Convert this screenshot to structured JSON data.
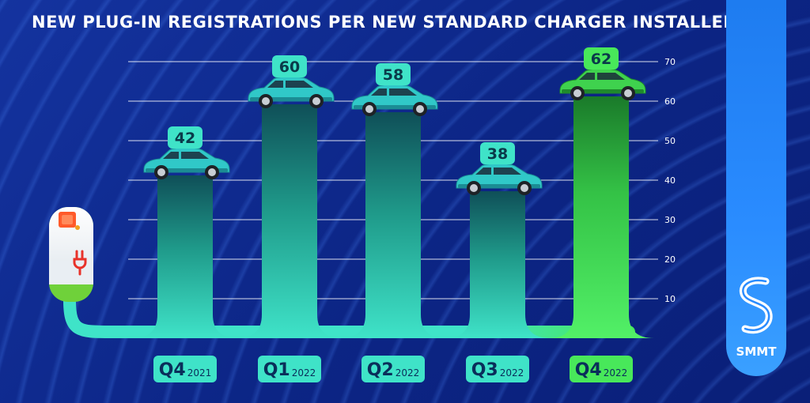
{
  "title": "NEW PLUG-IN REGISTRATIONS PER NEW STANDARD CHARGER INSTALLED",
  "brand": {
    "name": "SMMT"
  },
  "colors": {
    "background": "#0d2a8c",
    "teal": "#3fe3c8",
    "green": "#48e85a",
    "brand_blue": "#2a8cff"
  },
  "icons": [
    "charger-icon",
    "car-icon",
    "smmt-logo-icon"
  ],
  "chart_data": {
    "type": "bar",
    "categories": [
      "Q4",
      "Q1",
      "Q2",
      "Q3",
      "Q4"
    ],
    "years": [
      "2021",
      "2022",
      "2022",
      "2022",
      "2022"
    ],
    "values": [
      42,
      60,
      58,
      38,
      62
    ],
    "ylim": [
      0,
      70
    ],
    "yticks": [
      "10",
      "20",
      "30",
      "40",
      "50",
      "60",
      "70"
    ],
    "highlight_index": 4,
    "grid": true
  }
}
